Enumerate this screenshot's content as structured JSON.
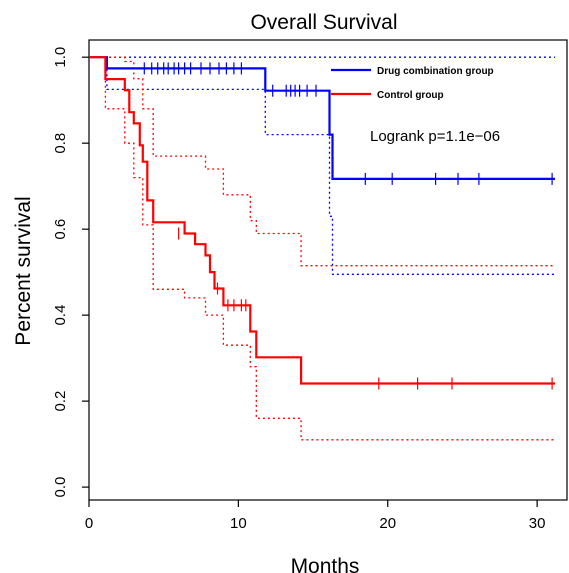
{
  "chart_data": {
    "type": "line",
    "subtype": "kaplan-meier",
    "title": "Overall Survival",
    "xlabel": "Months",
    "ylabel": "Percent survival",
    "xlim": [
      0,
      32
    ],
    "ylim": [
      -0.03,
      1.04
    ],
    "xticks": [
      "0",
      "10",
      "20",
      "30"
    ],
    "yticks": [
      "0.0",
      "0.2",
      "0.4",
      "0.6",
      "0.8",
      "1.0"
    ],
    "annotation": "Logrank p=1.1e−06",
    "legend": {
      "position": "top-right",
      "entries": [
        {
          "label": "Drug combination group",
          "color": "#0000ff"
        },
        {
          "label": "Control group",
          "color": "#ff0000"
        }
      ]
    },
    "series": [
      {
        "name": "Drug combination group",
        "color": "#0000ff",
        "x": [
          0,
          1.2,
          11.8,
          16.1,
          16.3,
          31.2
        ],
        "y": [
          1.0,
          0.974,
          0.922,
          0.82,
          0.717,
          0.717
        ],
        "censored": {
          "x": [
            3.7,
            4.2,
            4.6,
            5.0,
            5.3,
            5.7,
            6.0,
            6.4,
            6.8,
            7.5,
            8.1,
            8.7,
            9.2,
            9.7,
            10.2,
            12.3,
            13.2,
            13.5,
            13.8,
            14.1,
            14.6,
            15.2,
            18.5,
            20.3,
            23.2,
            24.7,
            26.1,
            31.0
          ],
          "y": [
            0.974,
            0.974,
            0.974,
            0.974,
            0.974,
            0.974,
            0.974,
            0.974,
            0.974,
            0.974,
            0.974,
            0.974,
            0.974,
            0.974,
            0.974,
            0.922,
            0.922,
            0.922,
            0.922,
            0.922,
            0.922,
            0.922,
            0.717,
            0.717,
            0.717,
            0.717,
            0.717,
            0.717
          ]
        },
        "ci_upper": {
          "x": [
            0,
            31.2
          ],
          "y": [
            1.0,
            1.0
          ]
        },
        "ci_lower": {
          "x": [
            0,
            1.2,
            11.8,
            16.1,
            16.3,
            31.2
          ],
          "y": [
            1.0,
            0.925,
            0.82,
            0.63,
            0.495,
            0.495
          ]
        }
      },
      {
        "name": "Control group",
        "color": "#ff0000",
        "x": [
          0,
          1.1,
          2.4,
          2.7,
          3.0,
          3.4,
          3.6,
          3.9,
          4.3,
          6.4,
          7.1,
          7.8,
          8.1,
          8.4,
          9.0,
          10.8,
          11.2,
          14.2,
          31.2
        ],
        "y": [
          1.0,
          0.949,
          0.923,
          0.872,
          0.846,
          0.795,
          0.757,
          0.667,
          0.616,
          0.59,
          0.565,
          0.539,
          0.5,
          0.462,
          0.423,
          0.362,
          0.302,
          0.241,
          0.241
        ],
        "censored": {
          "x": [
            6.0,
            8.6,
            9.3,
            9.7,
            10.2,
            10.5,
            19.4,
            22.0,
            24.3,
            31.0
          ],
          "y": [
            0.59,
            0.462,
            0.423,
            0.423,
            0.423,
            0.423,
            0.241,
            0.241,
            0.241,
            0.241
          ]
        },
        "ci_upper": {
          "x": [
            0,
            1.1,
            2.4,
            3.0,
            3.6,
            4.3,
            6.4,
            7.8,
            9.0,
            10.8,
            11.2,
            14.2,
            31.2
          ],
          "y": [
            1.0,
            1.0,
            0.99,
            0.95,
            0.88,
            0.77,
            0.77,
            0.74,
            0.68,
            0.62,
            0.59,
            0.515,
            0.515
          ]
        },
        "ci_lower": {
          "x": [
            0,
            1.1,
            2.4,
            3.0,
            3.6,
            4.3,
            6.4,
            7.8,
            9.0,
            10.8,
            11.2,
            14.2,
            31.2
          ],
          "y": [
            1.0,
            0.88,
            0.8,
            0.72,
            0.61,
            0.46,
            0.44,
            0.4,
            0.33,
            0.28,
            0.16,
            0.11,
            0.11
          ]
        }
      }
    ]
  }
}
